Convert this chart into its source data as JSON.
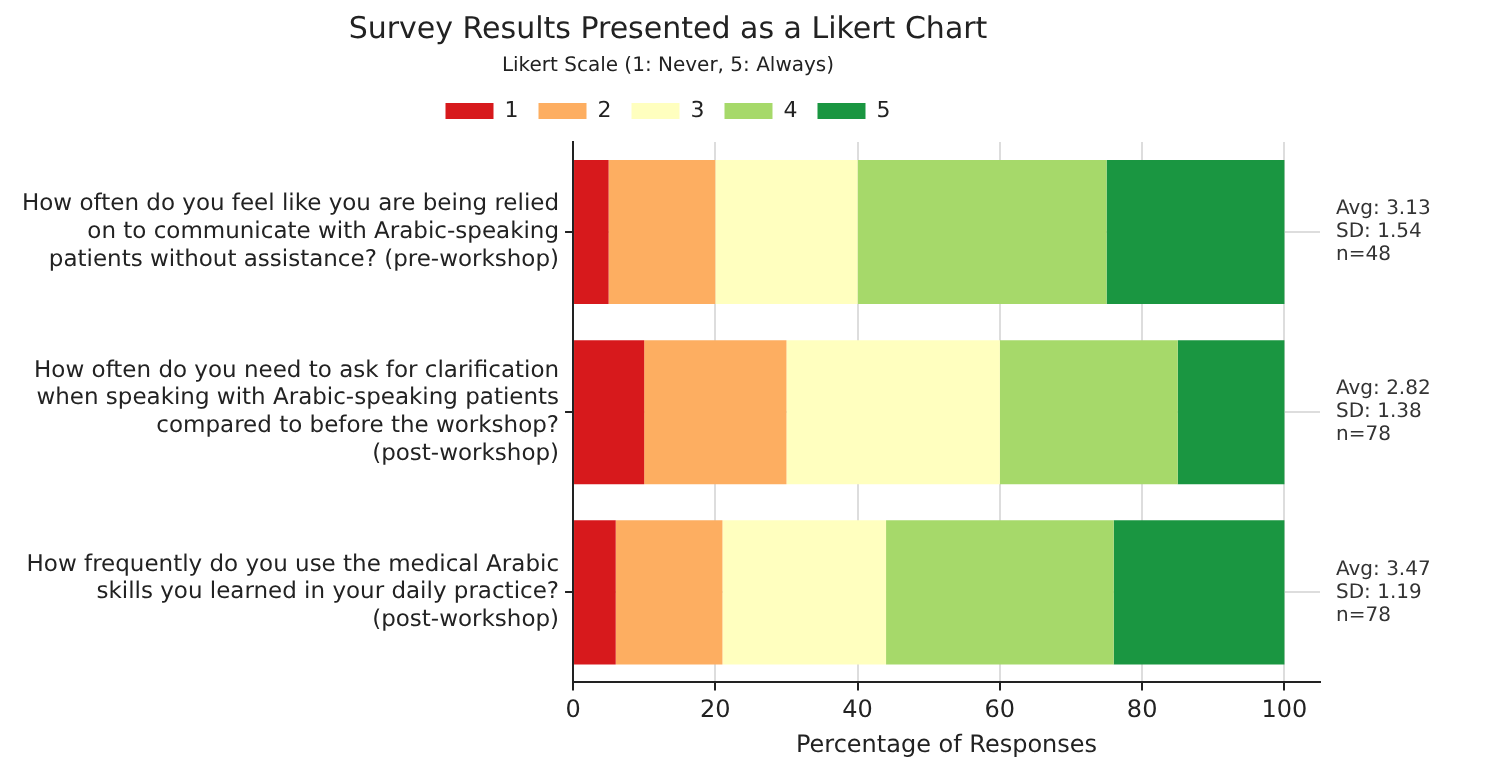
{
  "chart_data": {
    "type": "bar",
    "orientation": "horizontal",
    "stacked": true,
    "title": "Survey Results Presented as a Likert Chart",
    "xlabel": "Percentage of Responses",
    "legend_title": "Likert Scale (1: Never, 5: Always)",
    "legend": "top",
    "categories": [
      "How often do you feel like you are being relied on to communicate with Arabic-speaking patients without assistance? (pre-workshop)",
      "How often do you need to ask for clarification when speaking with Arabic-speaking patients compared to before the workshop? (post-workshop)",
      "How frequently do you use the medical Arabic skills you learned in your daily practice? (post-workshop)"
    ],
    "series": [
      {
        "name": "1",
        "color": "#d7191c",
        "values": [
          5,
          10,
          6
        ]
      },
      {
        "name": "2",
        "color": "#fdae61",
        "values": [
          15,
          20,
          15
        ]
      },
      {
        "name": "3",
        "color": "#ffffbf",
        "values": [
          20,
          30,
          23
        ]
      },
      {
        "name": "4",
        "color": "#a6d96a",
        "values": [
          35,
          25,
          32
        ]
      },
      {
        "name": "5",
        "color": "#1a9641",
        "values": [
          25,
          15,
          24
        ]
      }
    ],
    "xlim": [
      0,
      105
    ],
    "xticks": [
      0,
      20,
      40,
      60,
      80,
      100
    ],
    "grid": true,
    "annotations": [
      "Avg: 3.13\nSD: 1.54\nn=48",
      "Avg: 2.82\nSD: 1.38\nn=78",
      "Avg: 3.47\nSD: 1.19\nn=78"
    ]
  }
}
